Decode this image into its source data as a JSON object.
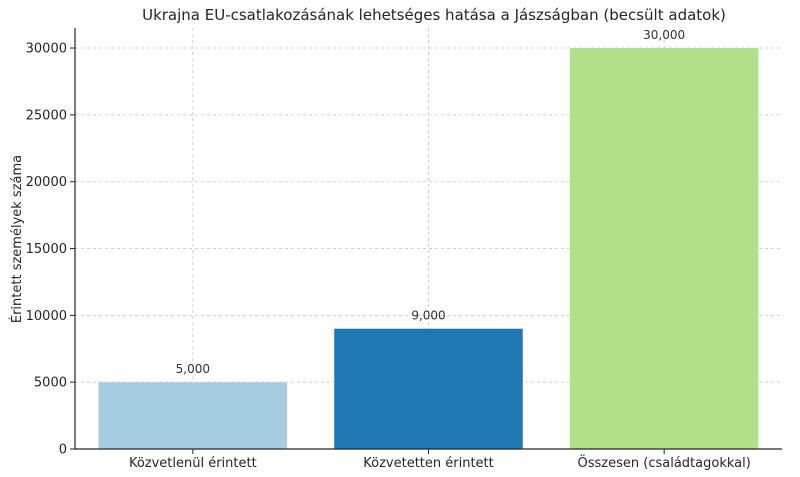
{
  "chart_data": {
    "type": "bar",
    "title": "Ukrajna EU-csatlakozásának lehetséges hatása a Jászságban (becsült adatok)",
    "xlabel": "",
    "ylabel": "Érintett személyek száma",
    "categories": [
      "Közvetlenül érintett",
      "Közvetetten érintett",
      "Összesen (családtagokkal)"
    ],
    "values": [
      5000,
      9000,
      30000
    ],
    "data_labels": [
      "5,000",
      "9,000",
      "30,000"
    ],
    "colors": [
      "#a6cee3",
      "#1f78b4",
      "#b2df8a"
    ],
    "ylim": [
      0,
      31500
    ],
    "yticks": [
      0,
      5000,
      10000,
      15000,
      20000,
      25000,
      30000
    ],
    "grid": true,
    "legend": "none"
  }
}
